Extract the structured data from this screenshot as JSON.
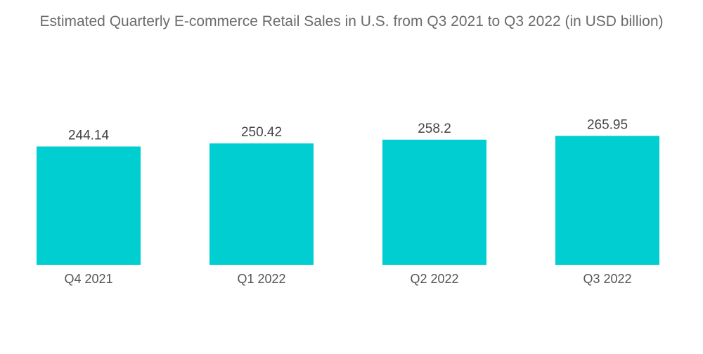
{
  "chart_data": {
    "type": "bar",
    "title": "Estimated Quarterly E-commerce Retail Sales in U.S. from Q3 2021 to Q3 2022 (in USD billion)",
    "categories": [
      "Q4 2021",
      "Q1 2022",
      "Q2 2022",
      "Q3 2022"
    ],
    "values": [
      244.14,
      250.42,
      258.2,
      265.95
    ],
    "value_labels": [
      "244.14",
      "250.42",
      "258.2",
      "265.95"
    ],
    "xlabel": "",
    "ylabel": "",
    "ylim": [
      0,
      300
    ],
    "grid": false,
    "bar_color": "#00CED1"
  }
}
